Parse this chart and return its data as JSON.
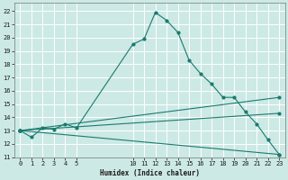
{
  "xlabel": "Humidex (Indice chaleur)",
  "background_color": "#cce9e5",
  "grid_color": "#ffffff",
  "line_color": "#1a7a6e",
  "xlim": [
    -0.5,
    23.5
  ],
  "ylim": [
    11,
    22.6
  ],
  "xtick_positions": [
    0,
    1,
    2,
    3,
    4,
    5,
    10,
    11,
    12,
    13,
    14,
    15,
    16,
    17,
    18,
    19,
    20,
    21,
    22,
    23
  ],
  "xtick_labels": [
    "0",
    "1",
    "2",
    "3",
    "4",
    "5",
    "10",
    "11",
    "12",
    "13",
    "14",
    "15",
    "16",
    "17",
    "18",
    "19",
    "20",
    "21",
    "22",
    "23"
  ],
  "ytick_positions": [
    11,
    12,
    13,
    14,
    15,
    16,
    17,
    18,
    19,
    20,
    21,
    22
  ],
  "ytick_labels": [
    "11",
    "12",
    "13",
    "14",
    "15",
    "16",
    "17",
    "18",
    "19",
    "20",
    "21",
    "22"
  ],
  "series": [
    {
      "x": [
        0,
        1,
        2,
        3,
        4,
        5,
        10,
        11,
        12,
        13,
        14,
        15,
        16,
        17,
        18,
        19,
        20,
        21,
        22,
        23
      ],
      "y": [
        13.0,
        12.5,
        13.2,
        13.1,
        13.5,
        13.2,
        19.5,
        19.9,
        21.9,
        21.3,
        20.4,
        18.3,
        17.3,
        16.5,
        15.5,
        15.5,
        14.4,
        13.5,
        12.3,
        11.2
      ]
    },
    {
      "x": [
        0,
        23
      ],
      "y": [
        13.0,
        11.2
      ]
    },
    {
      "x": [
        0,
        23
      ],
      "y": [
        13.0,
        14.3
      ]
    },
    {
      "x": [
        0,
        23
      ],
      "y": [
        13.0,
        15.5
      ]
    }
  ]
}
